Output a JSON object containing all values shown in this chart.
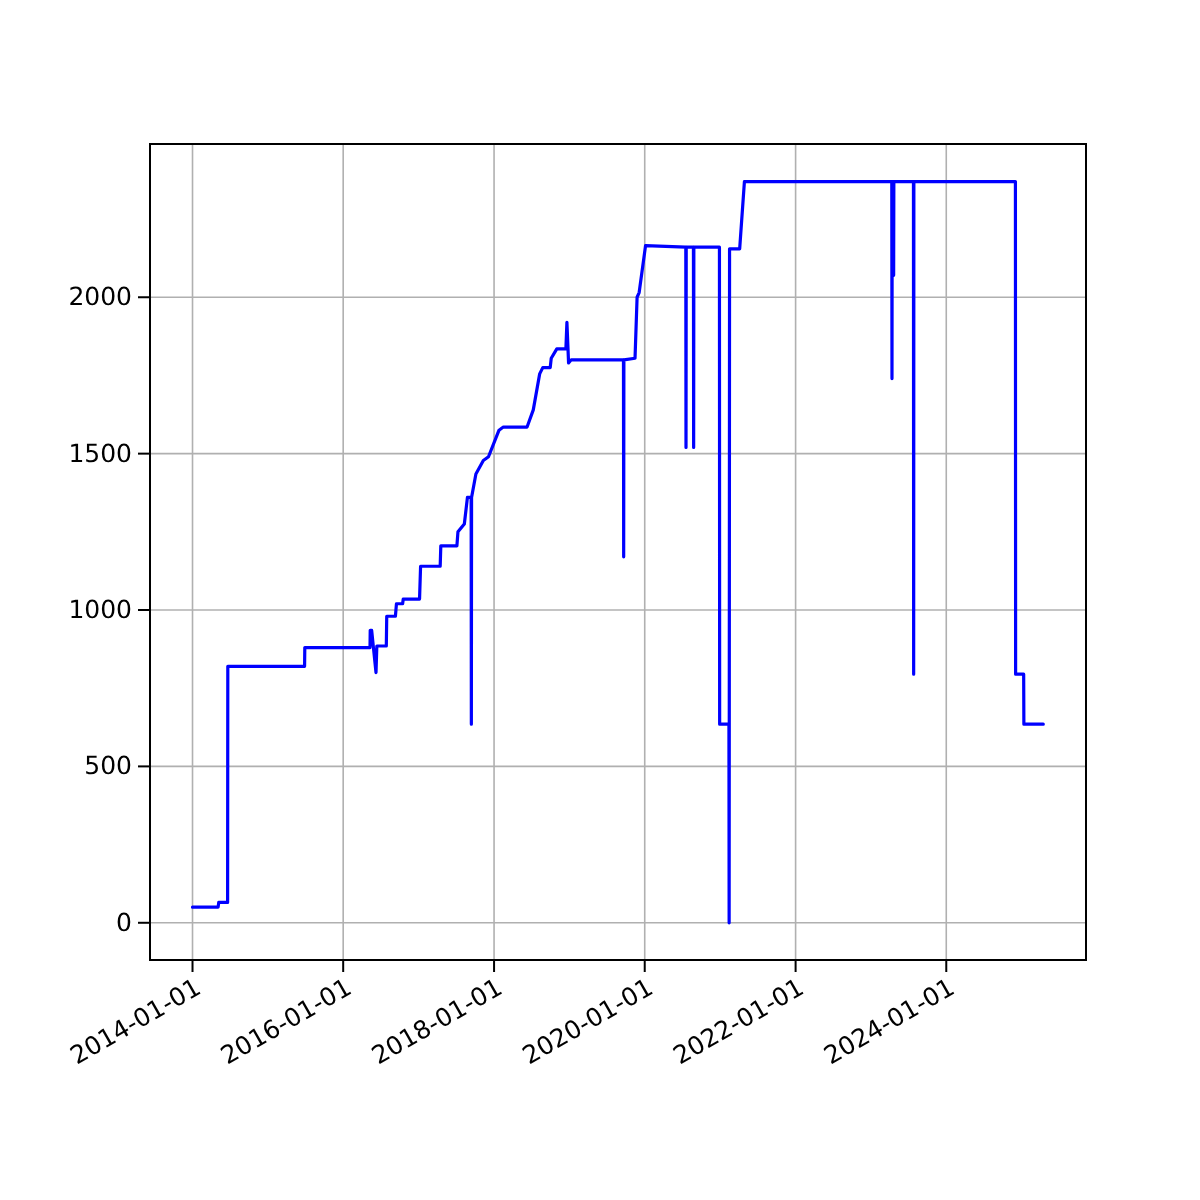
{
  "chart_data": {
    "type": "line",
    "xlim": [
      "2013-06-09",
      "2025-11-08"
    ],
    "ylim": [
      -119,
      2490
    ],
    "xticks": [
      "2014-01-01",
      "2016-01-01",
      "2018-01-01",
      "2020-01-01",
      "2022-01-01",
      "2024-01-01"
    ],
    "yticks": [
      0,
      500,
      1000,
      1500,
      2000
    ],
    "grid": true,
    "marker": "none",
    "line_style": "solid",
    "series": [
      {
        "color": "#0000ff",
        "x": [
          "2014-01-01",
          "2014-05-05",
          "2014-05-08",
          "2014-06-20",
          "2014-06-21",
          "2015-06-28",
          "2015-06-29",
          "2016-05-10",
          "2016-05-11",
          "2016-05-18",
          "2016-06-08",
          "2016-06-12",
          "2016-07-28",
          "2016-07-30",
          "2016-09-10",
          "2016-09-15",
          "2016-10-15",
          "2016-10-18",
          "2017-01-05",
          "2017-01-10",
          "2017-04-15",
          "2017-04-18",
          "2017-07-05",
          "2017-07-10",
          "2017-08-10",
          "2017-08-25",
          "2017-09-12",
          "2017-09-13",
          "2017-09-14",
          "2017-10-05",
          "2017-11-10",
          "2017-12-05",
          "2018-01-25",
          "2018-02-15",
          "2018-06-10",
          "2018-07-10",
          "2018-08-10",
          "2018-08-25",
          "2018-09-30",
          "2018-10-05",
          "2018-11-01",
          "2018-12-15",
          "2018-12-20",
          "2018-12-28",
          "2019-01-10",
          "2019-09-20",
          "2019-09-21",
          "2019-09-22",
          "2019-11-15",
          "2019-11-25",
          "2019-12-05",
          "2020-01-05",
          "2020-07-18",
          "2020-07-19",
          "2020-07-20",
          "2020-08-24",
          "2020-08-25",
          "2020-08-26",
          "2020-12-28",
          "2020-12-29",
          "2021-02-12",
          "2021-02-13",
          "2021-02-15",
          "2021-04-05",
          "2021-04-28",
          "2023-04-12",
          "2023-04-13",
          "2023-04-14",
          "2023-04-20",
          "2023-04-21",
          "2023-04-22",
          "2023-07-26",
          "2023-07-27",
          "2023-07-28",
          "2024-12-01",
          "2024-12-02",
          "2025-01-10",
          "2025-01-11",
          "2025-04-15"
        ],
        "values": [
          50,
          50,
          65,
          65,
          820,
          820,
          880,
          880,
          935,
          935,
          800,
          885,
          885,
          980,
          980,
          1020,
          1020,
          1035,
          1035,
          1140,
          1140,
          1205,
          1205,
          1250,
          1275,
          1360,
          1360,
          635,
          1360,
          1435,
          1478,
          1490,
          1575,
          1585,
          1585,
          1640,
          1755,
          1775,
          1775,
          1805,
          1835,
          1835,
          1920,
          1790,
          1800,
          1800,
          1170,
          1800,
          1805,
          2000,
          2015,
          2165,
          2160,
          1520,
          2160,
          2160,
          1520,
          2160,
          2160,
          635,
          635,
          0,
          2155,
          2155,
          2370,
          2370,
          1740,
          2370,
          2370,
          2070,
          2370,
          2370,
          795,
          2370,
          2370,
          795,
          795,
          635,
          635
        ]
      }
    ]
  }
}
